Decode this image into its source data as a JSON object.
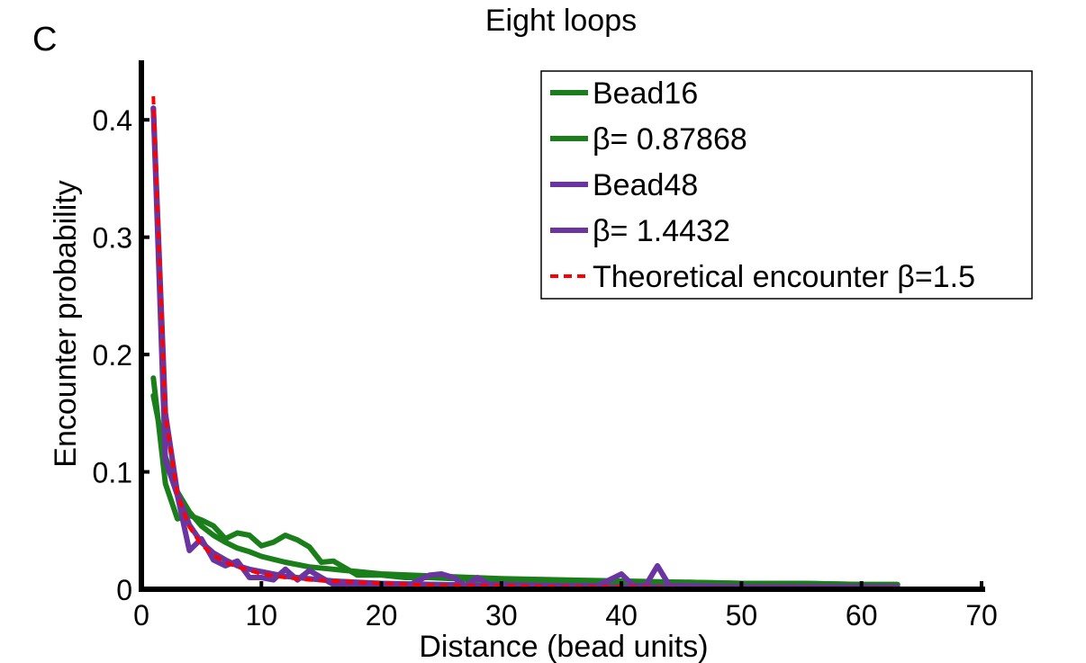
{
  "panel_label": "C",
  "chart_data": {
    "type": "line",
    "title": "Eight loops",
    "xlabel": "Distance (bead units)",
    "ylabel": "Encounter probability",
    "xlim": [
      0,
      70
    ],
    "ylim": [
      0,
      0.45
    ],
    "x_ticks": [
      0,
      10,
      20,
      30,
      40,
      50,
      60,
      70
    ],
    "x_tick_labels": [
      "0",
      "10",
      "20",
      "30",
      "40",
      "50",
      "60",
      "70"
    ],
    "y_ticks": [
      0,
      0.1,
      0.2,
      0.3,
      0.4
    ],
    "y_tick_labels": [
      "0",
      "0.1",
      "0.2",
      "0.3",
      "0.4"
    ],
    "grid": false,
    "legend_position": "top-right",
    "series": [
      {
        "name": "Bead16",
        "color": "#1a7f1a",
        "dash": "solid",
        "x": [
          1,
          2,
          3,
          4,
          5,
          6,
          7,
          8,
          9,
          10,
          11,
          12,
          13,
          14,
          15,
          16,
          17,
          18,
          20,
          22,
          24,
          26,
          28,
          30,
          35,
          40,
          45,
          50,
          55,
          60,
          63
        ],
        "y": [
          0.18,
          0.09,
          0.06,
          0.063,
          0.059,
          0.054,
          0.043,
          0.048,
          0.046,
          0.037,
          0.04,
          0.046,
          0.042,
          0.036,
          0.023,
          0.024,
          0.018,
          0.012,
          0.012,
          0.01,
          0.01,
          0.009,
          0.008,
          0.008,
          0.007,
          0.006,
          0.006,
          0.005,
          0.005,
          0.004,
          0.004
        ]
      },
      {
        "name": "β= 0.87868",
        "color": "#1a7f1a",
        "dash": "solid",
        "x": [
          1,
          2,
          3,
          4,
          5,
          6,
          7,
          8,
          9,
          10,
          12,
          14,
          16,
          18,
          20,
          25,
          30,
          35,
          40,
          45,
          50,
          55,
          60,
          63
        ],
        "y": [
          0.165,
          0.113,
          0.083,
          0.066,
          0.054,
          0.046,
          0.04,
          0.035,
          0.032,
          0.028,
          0.023,
          0.019,
          0.017,
          0.015,
          0.013,
          0.011,
          0.009,
          0.008,
          0.007,
          0.006,
          0.005,
          0.005,
          0.004,
          0.004
        ]
      },
      {
        "name": "Bead48",
        "color": "#6a35a0",
        "dash": "solid",
        "x": [
          1,
          2,
          3,
          4,
          5,
          6,
          7,
          8,
          9,
          10,
          11,
          12,
          13,
          14,
          15,
          16,
          17,
          18,
          20,
          22,
          24,
          25,
          26,
          27,
          28,
          29,
          30,
          35,
          38,
          39,
          40,
          41,
          42,
          43,
          44,
          45,
          50,
          55,
          60,
          63
        ],
        "y": [
          0.41,
          0.11,
          0.08,
          0.033,
          0.043,
          0.025,
          0.02,
          0.024,
          0.01,
          0.01,
          0.008,
          0.017,
          0.008,
          0.016,
          0.01,
          0.004,
          0.004,
          0.003,
          0.002,
          0.002,
          0.012,
          0.013,
          0.01,
          0.003,
          0.01,
          0.004,
          0.004,
          0.003,
          0.003,
          0.008,
          0.013,
          0.003,
          0.003,
          0.02,
          0.003,
          0.003,
          0.002,
          0.002,
          0.002,
          0.002
        ]
      },
      {
        "name": "β= 1.4432",
        "color": "#6a35a0",
        "dash": "solid",
        "x": [
          1,
          2,
          3,
          4,
          5,
          6,
          7,
          8,
          9,
          10,
          12,
          14,
          16,
          18,
          20,
          25,
          30,
          35,
          40,
          45,
          50,
          55,
          60,
          63
        ],
        "y": [
          0.41,
          0.15,
          0.082,
          0.055,
          0.04,
          0.031,
          0.025,
          0.02,
          0.017,
          0.015,
          0.011,
          0.009,
          0.007,
          0.006,
          0.005,
          0.004,
          0.003,
          0.002,
          0.002,
          0.002,
          0.001,
          0.001,
          0.001,
          0.001
        ]
      },
      {
        "name": "Theoretical encounter β=1.5",
        "color": "#ff0000",
        "dash": "dashed",
        "x": [
          1,
          2,
          3,
          4,
          5,
          6,
          7,
          8,
          9,
          10,
          12,
          14,
          16,
          18,
          20,
          25,
          30,
          35,
          40,
          45,
          50,
          55,
          60,
          63
        ],
        "y": [
          0.42,
          0.148,
          0.081,
          0.053,
          0.038,
          0.029,
          0.023,
          0.019,
          0.016,
          0.013,
          0.01,
          0.008,
          0.007,
          0.006,
          0.005,
          0.003,
          0.003,
          0.002,
          0.002,
          0.001,
          0.001,
          0.001,
          0.001,
          0.001
        ]
      }
    ]
  }
}
